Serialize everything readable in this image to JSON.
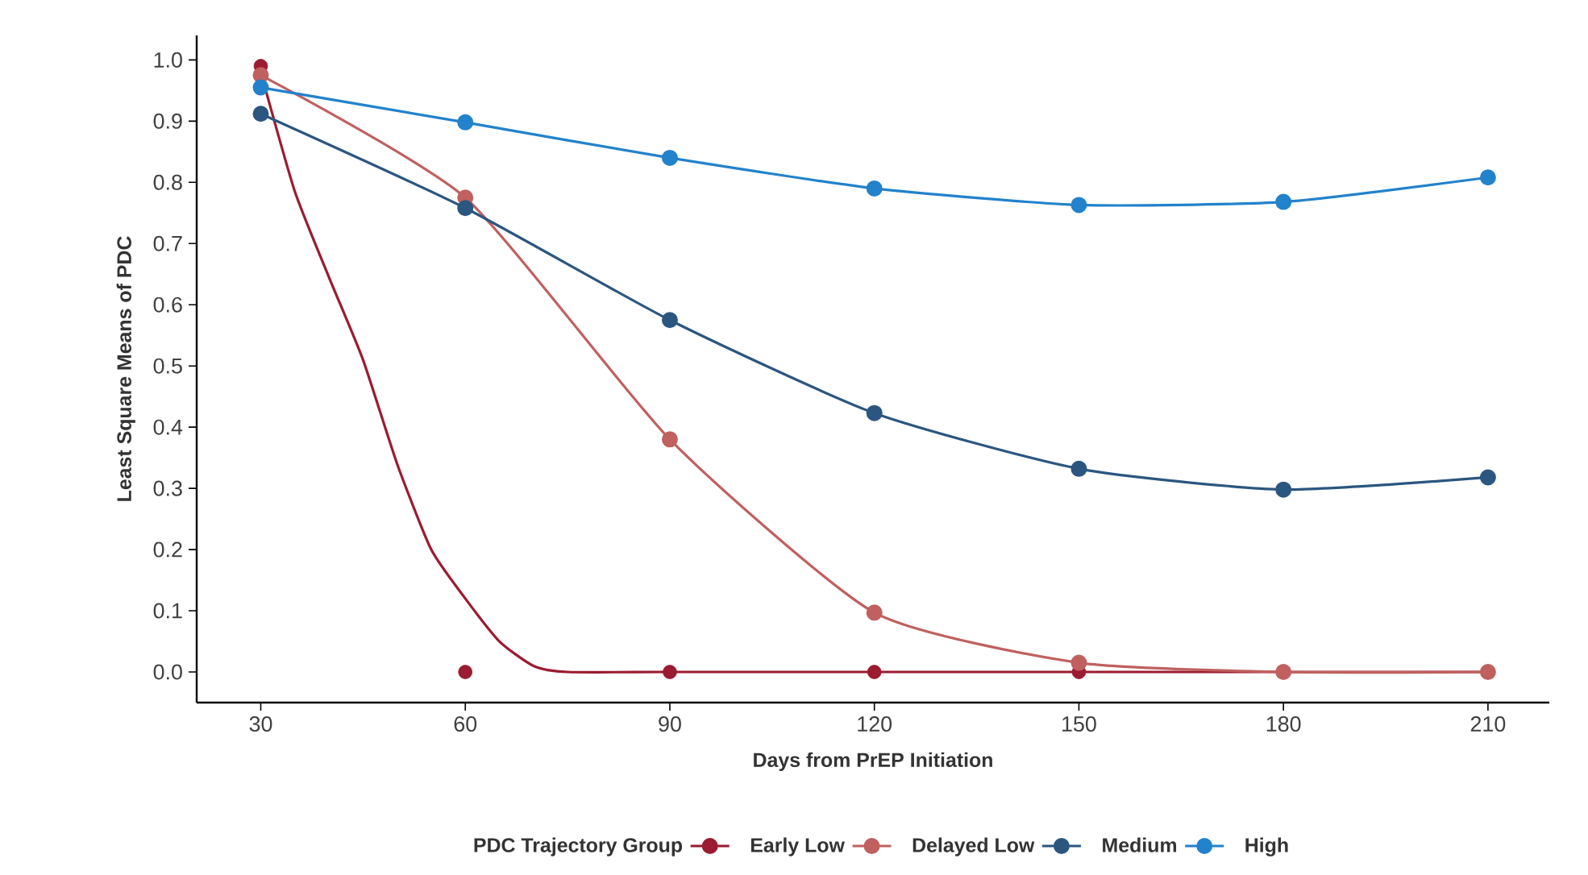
{
  "chart_data": {
    "type": "line",
    "xlabel": "Days from PrEP Initiation",
    "ylabel": "Least Square Means of PDC",
    "legend_title": "PDC Trajectory Group",
    "legend": "bottom",
    "marker": "circle",
    "line_style": "solid",
    "grid": false,
    "x": [
      30,
      60,
      90,
      120,
      150,
      180,
      210
    ],
    "xlim": [
      20.6,
      219
    ],
    "ylim": [
      -0.05,
      1.04
    ],
    "xticks": [
      30,
      60,
      90,
      120,
      150,
      180,
      210
    ],
    "yticks": [
      {
        "value": 0,
        "label": "0.0"
      },
      {
        "value": 0.1,
        "label": "0.1"
      },
      {
        "value": 0.2,
        "label": "0.2"
      },
      {
        "value": 0.3,
        "label": "0.3"
      },
      {
        "value": 0.4,
        "label": "0.4"
      },
      {
        "value": 0.5,
        "label": "0.5"
      },
      {
        "value": 0.6,
        "label": "0.6"
      },
      {
        "value": 0.7,
        "label": "0.7"
      },
      {
        "value": 0.8,
        "label": "0.8"
      },
      {
        "value": 0.9,
        "label": "0.9"
      },
      {
        "value": 1.0,
        "label": "1.0"
      }
    ],
    "series": [
      {
        "type": "line",
        "marker": "none",
        "color": "#9b1b30",
        "x": [
          30,
          35,
          40,
          45,
          50,
          55,
          60,
          65,
          70,
          75,
          90,
          120,
          150,
          180,
          210
        ],
        "values": [
          0.98,
          0.785,
          0.645,
          0.51,
          0.34,
          0.2,
          0.12,
          0.05,
          0.01,
          0.0,
          0.0,
          0.0,
          0.0,
          0.0,
          0.0
        ]
      },
      {
        "name": "Early Low",
        "type": "scatter",
        "color": "#9b1b30",
        "values": [
          0.99,
          0.0,
          0.0,
          0.0,
          0.0,
          null,
          null
        ]
      },
      {
        "name": "Delayed Low",
        "color": "#c0605f",
        "values": [
          0.975,
          0.775,
          0.38,
          0.097,
          0.015,
          0.0,
          0.0
        ]
      },
      {
        "name": "Medium",
        "color": "#2b5680",
        "values": [
          0.912,
          0.758,
          0.575,
          0.423,
          0.332,
          0.298,
          0.318
        ]
      },
      {
        "name": "High",
        "color": "#2282cc",
        "values": [
          0.955,
          0.898,
          0.84,
          0.79,
          0.763,
          0.768,
          0.808
        ]
      }
    ]
  }
}
